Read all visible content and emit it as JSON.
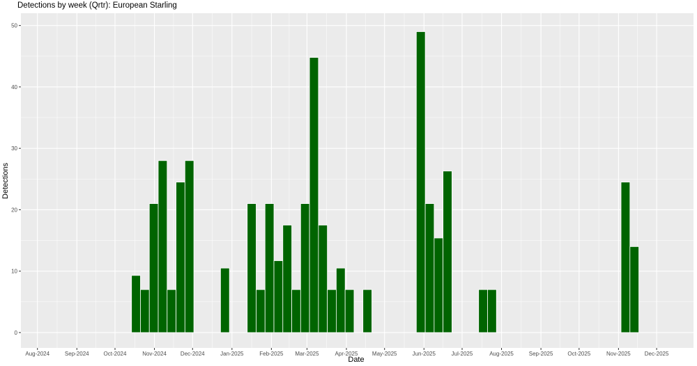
{
  "chart_data": {
    "type": "bar",
    "title": "Detections by week (Qrtr): European Starling",
    "xlabel": "Date",
    "ylabel": "Detections",
    "ylim": [
      -2.5,
      52
    ],
    "yticks": [
      0,
      10,
      20,
      30,
      40,
      50
    ],
    "xlim": [
      "2024-07-19",
      "2025-12-30"
    ],
    "xticks": [
      {
        "date": "2024-08-01",
        "label": "Aug-2024"
      },
      {
        "date": "2024-09-01",
        "label": "Sep-2024"
      },
      {
        "date": "2024-10-01",
        "label": "Oct-2024"
      },
      {
        "date": "2024-11-01",
        "label": "Nov-2024"
      },
      {
        "date": "2024-12-01",
        "label": "Dec-2024"
      },
      {
        "date": "2025-01-01",
        "label": "Jan-2025"
      },
      {
        "date": "2025-02-01",
        "label": "Feb-2025"
      },
      {
        "date": "2025-03-01",
        "label": "Mar-2025"
      },
      {
        "date": "2025-04-01",
        "label": "Apr-2025"
      },
      {
        "date": "2025-05-01",
        "label": "May-2025"
      },
      {
        "date": "2025-06-01",
        "label": "Jun-2025"
      },
      {
        "date": "2025-07-01",
        "label": "Jul-2025"
      },
      {
        "date": "2025-08-01",
        "label": "Aug-2025"
      },
      {
        "date": "2025-09-01",
        "label": "Sep-2025"
      },
      {
        "date": "2025-10-01",
        "label": "Oct-2025"
      },
      {
        "date": "2025-11-01",
        "label": "Nov-2025"
      },
      {
        "date": "2025-12-01",
        "label": "Dec-2025"
      }
    ],
    "bar_color": "#006400",
    "panel_color": "#EBEBEB",
    "grid_color": "#FFFFFF",
    "grid": true,
    "legend": "none",
    "x": [
      "2024-10-14",
      "2024-10-21",
      "2024-10-28",
      "2024-11-04",
      "2024-11-11",
      "2024-11-18",
      "2024-11-25",
      "2024-12-23",
      "2025-01-13",
      "2025-01-20",
      "2025-01-27",
      "2025-02-03",
      "2025-02-10",
      "2025-02-17",
      "2025-02-24",
      "2025-03-03",
      "2025-03-10",
      "2025-03-17",
      "2025-03-24",
      "2025-03-31",
      "2025-04-14",
      "2025-05-26",
      "2025-06-02",
      "2025-06-09",
      "2025-06-16",
      "2025-07-14",
      "2025-07-21",
      "2025-11-03",
      "2025-11-10"
    ],
    "values": [
      9.3,
      7,
      21,
      28,
      7,
      24.5,
      28,
      10.5,
      21,
      7,
      21,
      11.7,
      17.5,
      7,
      21,
      44.8,
      17.5,
      7,
      10.5,
      7,
      7,
      49,
      21,
      15.4,
      26.3,
      7,
      7,
      24.5,
      14
    ]
  }
}
